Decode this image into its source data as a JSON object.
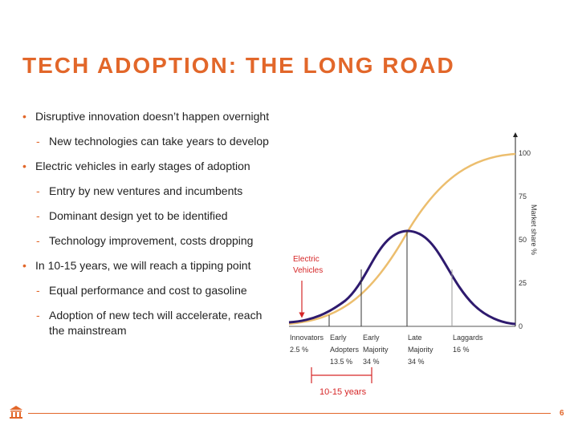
{
  "slide": {
    "title": "TECH ADOPTION: THE LONG ROAD",
    "page_number": "6"
  },
  "bullets": [
    {
      "text": "Disruptive innovation doesn’t happen overnight",
      "sub": [
        "New technologies can take years to develop"
      ]
    },
    {
      "text": "Electric vehicles in early stages of adoption",
      "sub": [
        "Entry by new ventures and incumbents",
        "Dominant design yet to be identified",
        "Technology improvement, costs dropping"
      ]
    },
    {
      "text": "In 10-15 years, we will reach a tipping point",
      "sub": [
        "Equal performance and cost to gasoline",
        "Adoption of new tech will accelerate, reach the mainstream"
      ]
    }
  ],
  "chart": {
    "annotation": [
      "Electric",
      "Vehicles"
    ],
    "range_label": "10-15 years",
    "right_axis_label": "Market share %",
    "right_ticks": [
      "100",
      "75",
      "50",
      "25",
      "0"
    ],
    "segments": [
      {
        "lines": [
          "Innovators",
          "2.5 %"
        ]
      },
      {
        "lines": [
          "Early",
          "Adopters",
          "13.5 %"
        ]
      },
      {
        "lines": [
          "Early",
          "Majority",
          "34 %"
        ]
      },
      {
        "lines": [
          "Late",
          "Majority",
          "34 %"
        ]
      },
      {
        "lines": [
          "Laggards",
          "16 %"
        ]
      }
    ]
  },
  "colors": {
    "accent": "#e2672a",
    "bell": "#2e1a6e",
    "scurve": "#ecbe6e",
    "annotation": "#d62728"
  }
}
